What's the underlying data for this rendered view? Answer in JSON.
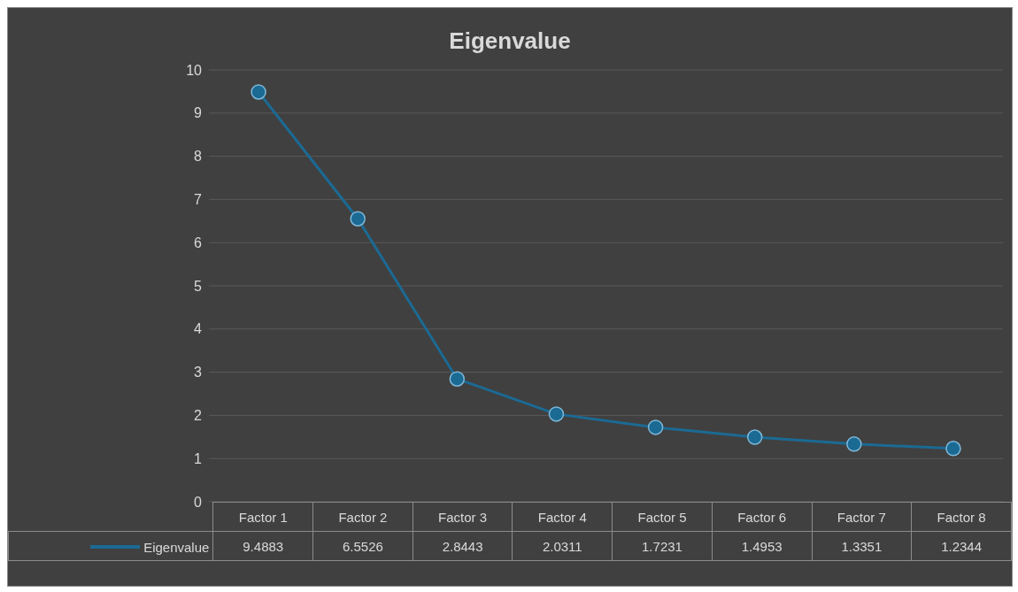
{
  "chart_data": {
    "type": "line",
    "title": "Eigenvalue",
    "categories": [
      "Factor 1",
      "Factor 2",
      "Factor 3",
      "Factor 4",
      "Factor 5",
      "Factor 6",
      "Factor 7",
      "Factor 8"
    ],
    "series": [
      {
        "name": "Eigenvalue",
        "color": "#1b6a94",
        "values": [
          9.4883,
          6.5526,
          2.8443,
          2.0311,
          1.7231,
          1.4953,
          1.3351,
          1.2344
        ]
      }
    ],
    "ylim": [
      0,
      10
    ],
    "yticks": [
      0,
      1,
      2,
      3,
      4,
      5,
      6,
      7,
      8,
      9,
      10
    ],
    "grid": "y",
    "legend": "bottom",
    "marker": "circle",
    "line_style": "solid",
    "data_labels": true
  }
}
